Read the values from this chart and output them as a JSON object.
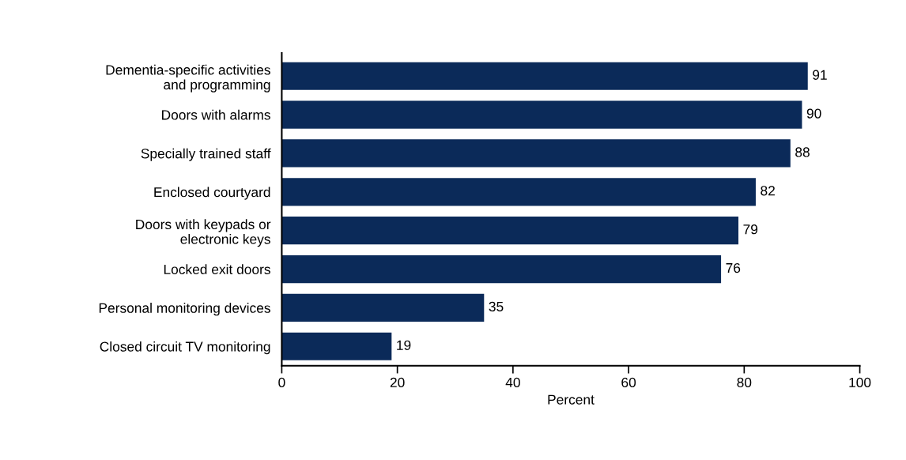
{
  "chart_data": {
    "type": "bar",
    "orientation": "horizontal",
    "xlabel": "Percent",
    "categories": [
      "Dementia-specific activities\nand programming",
      "Doors with alarms",
      "Specially trained staff",
      "Enclosed courtyard",
      "Doors with keypads or\nelectronic keys",
      "Locked exit doors",
      "Personal monitoring devices",
      "Closed circuit TV monitoring"
    ],
    "values": [
      91,
      90,
      88,
      82,
      79,
      76,
      35,
      19
    ],
    "color": "#0b2a59",
    "xlim": [
      0,
      100
    ],
    "xticks": [
      0,
      20,
      40,
      60,
      80,
      100
    ],
    "data_labels": true,
    "grid": false,
    "legend": false
  }
}
